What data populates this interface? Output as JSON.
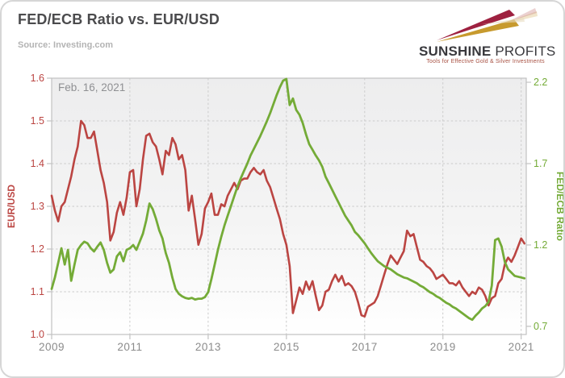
{
  "header": {
    "title": "FED/ECB Ratio vs. EUR/USD",
    "source": "Source: Investing.com"
  },
  "logo": {
    "word1": "SUNSHINE",
    "word2": "PROFITS",
    "tagline": "Tools for Effective Gold & Silver Investments",
    "ray_dark_red": "#9e2140",
    "ray_gold": "#c79a2e"
  },
  "chart_data": {
    "type": "line",
    "annotation": "Feb. 16, 2021",
    "x_axis": {
      "min": 2009.0,
      "max": 2021.13,
      "tick_labels": [
        "2009",
        "2011",
        "2013",
        "2015",
        "2017",
        "2019",
        "2021"
      ],
      "tick_years": [
        2009,
        2011,
        2013,
        2015,
        2017,
        2019,
        2021
      ],
      "grid_years": [
        2011,
        2013,
        2015,
        2017,
        2019,
        2021
      ],
      "label_color": "#8b8b8b"
    },
    "left_axis": {
      "label": "EUR/USD",
      "min": 1.0,
      "max": 1.6,
      "ticks": [
        1.0,
        1.1,
        1.2,
        1.3,
        1.4,
        1.5,
        1.6
      ],
      "grid_ticks": [
        1.1,
        1.2,
        1.3,
        1.4,
        1.5
      ],
      "color": "#bb4542"
    },
    "right_axis": {
      "label": "FED/ECB Ratio",
      "min": 0.65,
      "max": 2.225,
      "ticks": [
        0.7,
        1.2,
        1.7,
        2.2
      ],
      "color": "#74ab37"
    },
    "grid_color": "#cbcbcb",
    "axis_line_color": "#c2c2c2",
    "plot_bg_top": "#ededee",
    "plot_bg_bottom": "#ffffff",
    "annotation_color": "#8f9093",
    "series": [
      {
        "name": "EUR/USD",
        "axis": "left",
        "color": "#bb4542",
        "width": 2.6,
        "x_start": 2009.0,
        "values": [
          1.325,
          1.29,
          1.265,
          1.3,
          1.31,
          1.34,
          1.37,
          1.41,
          1.44,
          1.5,
          1.49,
          1.46,
          1.46,
          1.475,
          1.43,
          1.385,
          1.355,
          1.31,
          1.22,
          1.24,
          1.285,
          1.31,
          1.28,
          1.32,
          1.38,
          1.385,
          1.3,
          1.34,
          1.41,
          1.465,
          1.47,
          1.45,
          1.44,
          1.41,
          1.375,
          1.43,
          1.42,
          1.46,
          1.445,
          1.41,
          1.42,
          1.385,
          1.29,
          1.325,
          1.27,
          1.21,
          1.235,
          1.295,
          1.31,
          1.33,
          1.28,
          1.28,
          1.305,
          1.3,
          1.325,
          1.34,
          1.355,
          1.34,
          1.36,
          1.365,
          1.365,
          1.38,
          1.39,
          1.38,
          1.375,
          1.385,
          1.36,
          1.345,
          1.32,
          1.295,
          1.27,
          1.235,
          1.21,
          1.16,
          1.05,
          1.08,
          1.11,
          1.095,
          1.124,
          1.105,
          1.125,
          1.09,
          1.057,
          1.068,
          1.1,
          1.105,
          1.125,
          1.14,
          1.124,
          1.137,
          1.115,
          1.12,
          1.113,
          1.1,
          1.075,
          1.045,
          1.042,
          1.065,
          1.07,
          1.075,
          1.09,
          1.115,
          1.14,
          1.165,
          1.185,
          1.175,
          1.165,
          1.18,
          1.195,
          1.243,
          1.23,
          1.235,
          1.205,
          1.175,
          1.17,
          1.16,
          1.155,
          1.145,
          1.13,
          1.135,
          1.14,
          1.13,
          1.12,
          1.12,
          1.115,
          1.125,
          1.11,
          1.1,
          1.09,
          1.1,
          1.095,
          1.11,
          1.105,
          1.09,
          1.068,
          1.085,
          1.09,
          1.12,
          1.13,
          1.165,
          1.18,
          1.17,
          1.185,
          1.205,
          1.225,
          1.213
        ]
      },
      {
        "name": "FED/ECB Ratio",
        "axis": "right",
        "color": "#74ab37",
        "width": 2.8,
        "x_start": 2009.0,
        "values": [
          0.93,
          1.0,
          1.09,
          1.18,
          1.08,
          1.17,
          0.98,
          1.08,
          1.17,
          1.2,
          1.22,
          1.21,
          1.18,
          1.16,
          1.19,
          1.215,
          1.17,
          1.09,
          1.03,
          1.05,
          1.13,
          1.155,
          1.1,
          1.17,
          1.18,
          1.2,
          1.17,
          1.22,
          1.27,
          1.35,
          1.455,
          1.42,
          1.36,
          1.29,
          1.24,
          1.15,
          1.09,
          1.0,
          0.93,
          0.9,
          0.885,
          0.875,
          0.87,
          0.875,
          0.865,
          0.87,
          0.87,
          0.88,
          0.91,
          0.99,
          1.08,
          1.17,
          1.25,
          1.32,
          1.38,
          1.44,
          1.5,
          1.56,
          1.61,
          1.655,
          1.7,
          1.75,
          1.79,
          1.83,
          1.87,
          1.915,
          1.96,
          2.01,
          2.065,
          2.12,
          2.17,
          2.21,
          2.22,
          2.06,
          2.1,
          2.03,
          2.0,
          1.95,
          1.88,
          1.82,
          1.785,
          1.75,
          1.72,
          1.68,
          1.62,
          1.58,
          1.54,
          1.5,
          1.46,
          1.42,
          1.38,
          1.35,
          1.32,
          1.28,
          1.26,
          1.235,
          1.21,
          1.18,
          1.15,
          1.125,
          1.1,
          1.085,
          1.07,
          1.06,
          1.05,
          1.035,
          1.02,
          1.01,
          1.0,
          0.995,
          0.985,
          0.975,
          0.965,
          0.95,
          0.94,
          0.925,
          0.91,
          0.9,
          0.885,
          0.875,
          0.86,
          0.845,
          0.835,
          0.82,
          0.81,
          0.795,
          0.78,
          0.765,
          0.75,
          0.74,
          0.765,
          0.785,
          0.81,
          0.825,
          0.85,
          0.95,
          1.23,
          1.24,
          1.19,
          1.095,
          1.05,
          1.03,
          1.01,
          1.005,
          1.0,
          0.995
        ]
      }
    ]
  }
}
